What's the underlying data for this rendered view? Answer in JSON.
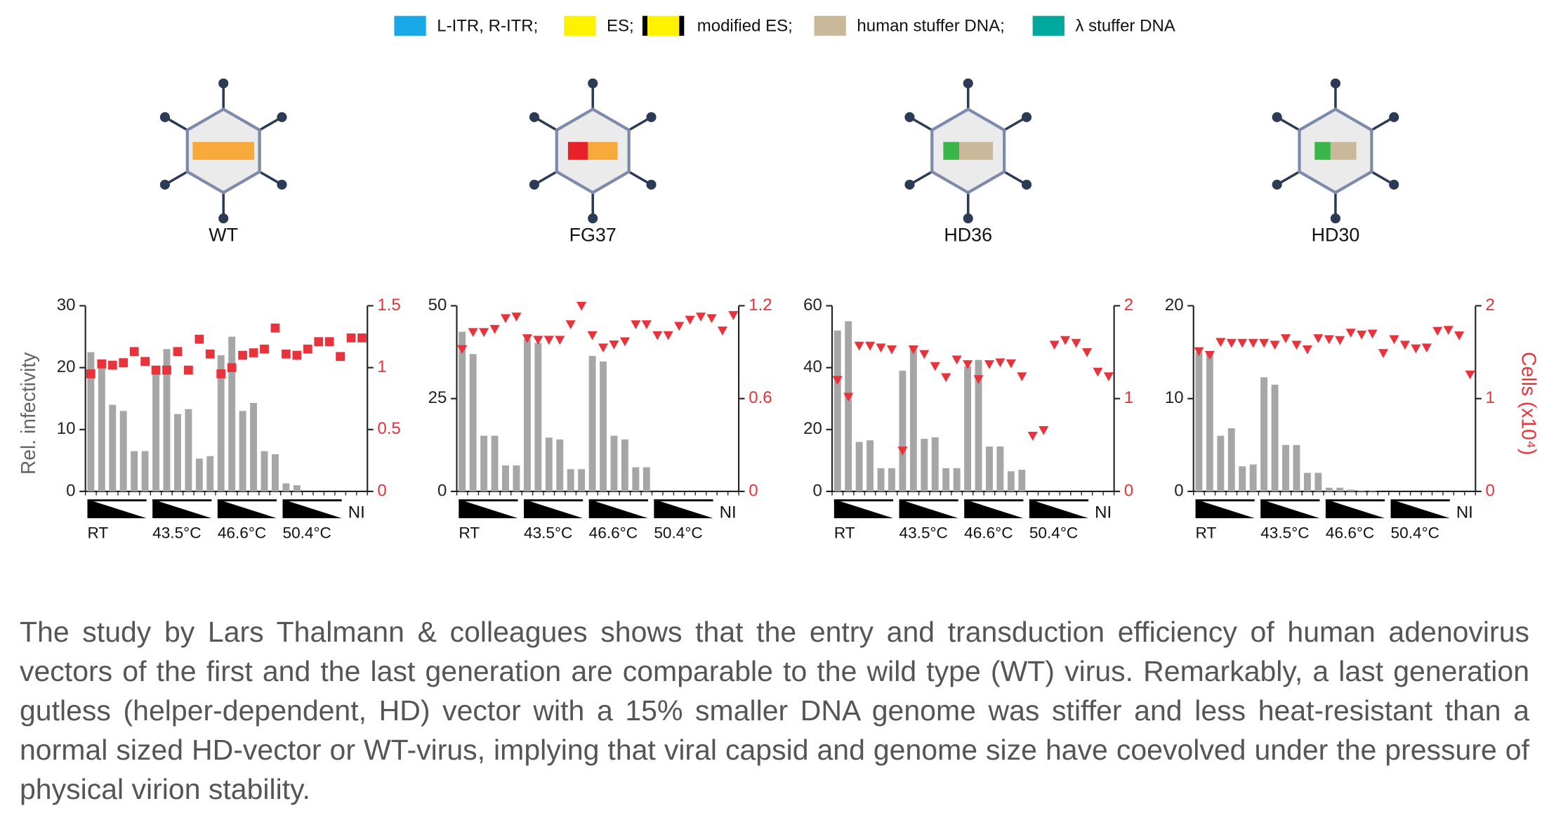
{
  "legend": [
    {
      "label": "L-ITR, R-ITR;",
      "color": "#1aa9e8"
    },
    {
      "label": "ES;",
      "color": "#fff200"
    },
    {
      "label": "modified ES;",
      "colors": [
        "#000000",
        "#fff200",
        "#000000"
      ]
    },
    {
      "label": "human stuffer DNA;",
      "color": "#c9b99a"
    },
    {
      "label": "λ stuffer DNA",
      "color": "#00a99d"
    }
  ],
  "chart_data": [
    {
      "type": "bar",
      "title": "WT",
      "y_label": "Rel. infectivity",
      "categories": [
        "RT",
        null,
        null,
        null,
        null,
        null,
        "43.5°C",
        null,
        null,
        null,
        null,
        null,
        "46.6°C",
        null,
        null,
        null,
        null,
        null,
        "50.4°C",
        null,
        null,
        null,
        null,
        null,
        "NI",
        null
      ],
      "ylim": [
        0,
        30
      ],
      "yticks": [
        0,
        10,
        20,
        30
      ],
      "y2lim": [
        0,
        1.5
      ],
      "y2ticks": [
        0,
        0.5,
        1,
        1.5
      ],
      "series": [
        {
          "type": "bar",
          "color": "#a6a6a6",
          "values": [
            22.5,
            20.5,
            14,
            13,
            6.5,
            6.5,
            19.5,
            23,
            12.5,
            13.3,
            5.3,
            5.7,
            22,
            25,
            13,
            14.3,
            6.5,
            6,
            1.3,
            1,
            null,
            null,
            null,
            null,
            null,
            null
          ]
        },
        {
          "type": "scatter",
          "axis": "y2",
          "marker": "square",
          "color": "#e8323c",
          "values": [
            0.95,
            1.03,
            1.02,
            1.04,
            1.13,
            1.05,
            0.98,
            0.98,
            1.13,
            0.98,
            1.23,
            1.11,
            0.95,
            1.0,
            1.1,
            1.12,
            1.15,
            1.32,
            1.11,
            1.1,
            1.15,
            1.21,
            1.21,
            1.09,
            1.24,
            1.24
          ]
        }
      ]
    },
    {
      "type": "bar",
      "title": "FG37",
      "categories": [
        "RT",
        null,
        null,
        null,
        null,
        null,
        "43.5°C",
        null,
        null,
        null,
        null,
        null,
        "46.6°C",
        null,
        null,
        null,
        null,
        null,
        "50.4°C",
        null,
        null,
        null,
        null,
        null,
        "NI",
        null
      ],
      "ylim": [
        0,
        50
      ],
      "yticks": [
        0,
        25,
        50
      ],
      "y2lim": [
        0,
        1.2
      ],
      "y2ticks": [
        0,
        0.6,
        1.2
      ],
      "series": [
        {
          "type": "bar",
          "color": "#a6a6a6",
          "values": [
            43,
            37,
            15,
            15,
            7,
            7,
            41,
            40,
            14.5,
            14,
            6,
            6,
            36.5,
            35,
            15,
            14,
            6.5,
            6.5,
            null,
            null,
            null,
            null,
            null,
            null,
            null,
            null
          ]
        },
        {
          "type": "scatter",
          "axis": "y2",
          "marker": "triangle",
          "color": "#e8323c",
          "values": [
            0.92,
            1.03,
            1.03,
            1.05,
            1.12,
            1.13,
            0.99,
            0.98,
            0.98,
            0.98,
            1.08,
            1.2,
            1.01,
            0.93,
            0.95,
            0.97,
            1.08,
            1.08,
            1.01,
            1.01,
            1.07,
            1.11,
            1.13,
            1.12,
            1.04,
            1.14
          ]
        }
      ]
    },
    {
      "type": "bar",
      "title": "HD36",
      "categories": [
        "RT",
        null,
        null,
        null,
        null,
        null,
        "43.5°C",
        null,
        null,
        null,
        null,
        null,
        "46.6°C",
        null,
        null,
        null,
        null,
        null,
        "50.4°C",
        null,
        null,
        null,
        null,
        null,
        "NI",
        null
      ],
      "ylim": [
        0,
        60
      ],
      "yticks": [
        0,
        20,
        40,
        60
      ],
      "y2lim": [
        0,
        2
      ],
      "y2ticks": [
        0,
        1,
        2
      ],
      "series": [
        {
          "type": "bar",
          "color": "#a6a6a6",
          "values": [
            52,
            55,
            16,
            16.5,
            7.5,
            7.5,
            39,
            46.5,
            17,
            17.5,
            7.5,
            7.5,
            40.5,
            42.5,
            14.5,
            14.5,
            6.5,
            7,
            null,
            null,
            null,
            null,
            null,
            null,
            null,
            null
          ]
        },
        {
          "type": "scatter",
          "axis": "y2",
          "marker": "triangle",
          "color": "#e8323c",
          "values": [
            1.2,
            1.02,
            1.57,
            1.57,
            1.55,
            1.53,
            0.44,
            1.53,
            1.48,
            1.35,
            1.23,
            1.42,
            1.37,
            1.21,
            1.37,
            1.39,
            1.38,
            1.24,
            0.6,
            0.66,
            1.58,
            1.63,
            1.6,
            1.5,
            1.29,
            1.24
          ]
        }
      ]
    },
    {
      "type": "bar",
      "title": "HD30",
      "y2_label": "Cells (x10⁴)",
      "categories": [
        "RT",
        null,
        null,
        null,
        null,
        null,
        "43.5°C",
        null,
        null,
        null,
        null,
        null,
        "46.6°C",
        null,
        null,
        null,
        null,
        null,
        "50.4°C",
        null,
        null,
        null,
        null,
        null,
        "NI",
        null
      ],
      "ylim": [
        0,
        20
      ],
      "yticks": [
        0,
        10,
        20
      ],
      "y2lim": [
        0,
        2
      ],
      "y2ticks": [
        0,
        1,
        2
      ],
      "series": [
        {
          "type": "bar",
          "color": "#a6a6a6",
          "values": [
            15,
            15,
            6,
            6.8,
            2.7,
            2.9,
            12.3,
            11.5,
            5,
            5,
            2,
            2,
            0.4,
            0.4,
            0.2,
            0.1,
            0.1,
            null,
            null,
            null,
            null,
            null,
            null,
            null,
            null,
            null
          ]
        },
        {
          "type": "scatter",
          "axis": "y2",
          "marker": "triangle",
          "color": "#e8323c",
          "values": [
            1.51,
            1.47,
            1.61,
            1.6,
            1.6,
            1.6,
            1.6,
            1.58,
            1.65,
            1.58,
            1.53,
            1.65,
            1.64,
            1.63,
            1.71,
            1.69,
            1.7,
            1.49,
            1.64,
            1.58,
            1.54,
            1.55,
            1.73,
            1.74,
            1.68,
            1.26
          ]
        }
      ]
    }
  ],
  "caption": "The study by Lars Thalmann & colleagues shows that the entry and transduction efficiency of human adenovirus vectors of the first and the last generation are comparable to the wild type (WT) virus. Remarkably, a last generation gutless (helper-dependent, HD) vector with a 15% smaller DNA genome was stiffer and less heat-resistant than a normal sized HD-vector or WT-virus, implying that viral capsid and genome size have coevolved under the pressure of physical virion stability."
}
